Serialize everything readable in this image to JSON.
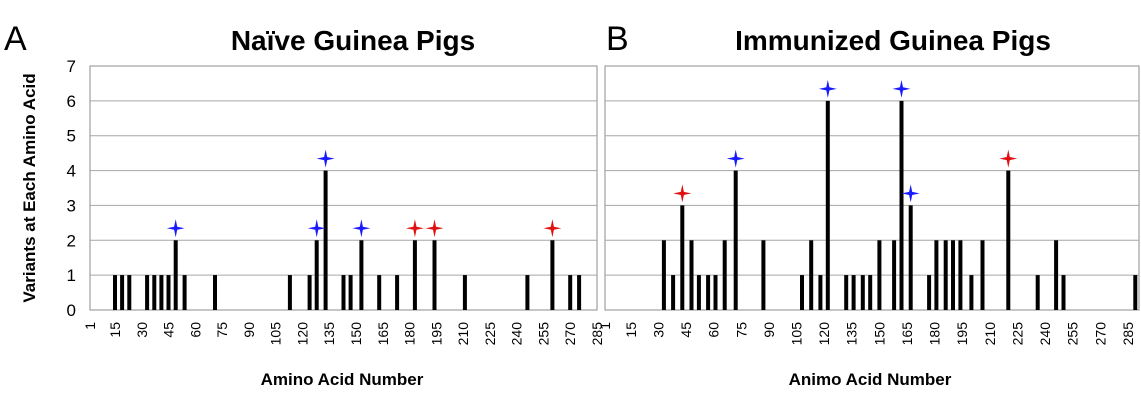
{
  "y_axis_label": "Variants at Each Amino Acid",
  "chart_data": [
    {
      "type": "bar",
      "panel_label": "A",
      "title": "Naïve Guinea Pigs",
      "xlabel": "Amino Acid Number",
      "ylabel": "Variants at Each Amino Acid",
      "ylim": [
        0,
        7
      ],
      "yticks": [
        0,
        1,
        2,
        3,
        4,
        5,
        6,
        7
      ],
      "xlim": [
        1,
        285
      ],
      "xticks": [
        1,
        15,
        30,
        45,
        60,
        75,
        90,
        105,
        120,
        135,
        150,
        165,
        180,
        195,
        210,
        225,
        240,
        255,
        270,
        285
      ],
      "grid": true,
      "points": [
        {
          "x": 15,
          "y": 1
        },
        {
          "x": 19,
          "y": 1
        },
        {
          "x": 23,
          "y": 1
        },
        {
          "x": 33,
          "y": 1
        },
        {
          "x": 37,
          "y": 1
        },
        {
          "x": 41,
          "y": 1
        },
        {
          "x": 45,
          "y": 1
        },
        {
          "x": 49,
          "y": 2
        },
        {
          "x": 54,
          "y": 1
        },
        {
          "x": 71,
          "y": 1
        },
        {
          "x": 113,
          "y": 1
        },
        {
          "x": 124,
          "y": 1
        },
        {
          "x": 128,
          "y": 2
        },
        {
          "x": 133,
          "y": 4
        },
        {
          "x": 143,
          "y": 1
        },
        {
          "x": 147,
          "y": 1
        },
        {
          "x": 153,
          "y": 2
        },
        {
          "x": 163,
          "y": 1
        },
        {
          "x": 173,
          "y": 1
        },
        {
          "x": 183,
          "y": 2
        },
        {
          "x": 194,
          "y": 2
        },
        {
          "x": 211,
          "y": 1
        },
        {
          "x": 246,
          "y": 1
        },
        {
          "x": 260,
          "y": 2
        },
        {
          "x": 270,
          "y": 1
        },
        {
          "x": 275,
          "y": 1
        }
      ],
      "markers": [
        {
          "x": 49,
          "y": 2,
          "color": "#1a1aff"
        },
        {
          "x": 128,
          "y": 2,
          "color": "#1a1aff"
        },
        {
          "x": 133,
          "y": 4,
          "color": "#1a1aff"
        },
        {
          "x": 153,
          "y": 2,
          "color": "#1a1aff"
        },
        {
          "x": 183,
          "y": 2,
          "color": "#e01010"
        },
        {
          "x": 194,
          "y": 2,
          "color": "#e01010"
        },
        {
          "x": 260,
          "y": 2,
          "color": "#e01010"
        }
      ]
    },
    {
      "type": "bar",
      "panel_label": "B",
      "title": "Immunized Guinea Pigs",
      "xlabel": "Animo Acid Number",
      "ylabel": "",
      "ylim": [
        0,
        7
      ],
      "yticks": [
        0,
        1,
        2,
        3,
        4,
        5,
        6,
        7
      ],
      "xlim": [
        1,
        291
      ],
      "xticks": [
        1,
        15,
        30,
        45,
        60,
        75,
        90,
        105,
        120,
        135,
        150,
        165,
        180,
        195,
        210,
        225,
        240,
        255,
        270,
        285
      ],
      "grid": true,
      "points": [
        {
          "x": 33,
          "y": 2
        },
        {
          "x": 38,
          "y": 1
        },
        {
          "x": 43,
          "y": 3
        },
        {
          "x": 48,
          "y": 2
        },
        {
          "x": 52,
          "y": 1
        },
        {
          "x": 57,
          "y": 1
        },
        {
          "x": 61,
          "y": 1
        },
        {
          "x": 66,
          "y": 2
        },
        {
          "x": 72,
          "y": 4
        },
        {
          "x": 87,
          "y": 2
        },
        {
          "x": 108,
          "y": 1
        },
        {
          "x": 113,
          "y": 2
        },
        {
          "x": 118,
          "y": 1
        },
        {
          "x": 122,
          "y": 6
        },
        {
          "x": 132,
          "y": 1
        },
        {
          "x": 136,
          "y": 1
        },
        {
          "x": 141,
          "y": 1
        },
        {
          "x": 145,
          "y": 1
        },
        {
          "x": 150,
          "y": 2
        },
        {
          "x": 158,
          "y": 2
        },
        {
          "x": 162,
          "y": 6
        },
        {
          "x": 167,
          "y": 3
        },
        {
          "x": 177,
          "y": 1
        },
        {
          "x": 181,
          "y": 2
        },
        {
          "x": 186,
          "y": 2
        },
        {
          "x": 190,
          "y": 2
        },
        {
          "x": 194,
          "y": 2
        },
        {
          "x": 200,
          "y": 1
        },
        {
          "x": 206,
          "y": 2
        },
        {
          "x": 220,
          "y": 4
        },
        {
          "x": 236,
          "y": 1
        },
        {
          "x": 246,
          "y": 2
        },
        {
          "x": 250,
          "y": 1
        },
        {
          "x": 289,
          "y": 1
        }
      ],
      "markers": [
        {
          "x": 43,
          "y": 3,
          "color": "#e01010"
        },
        {
          "x": 72,
          "y": 4,
          "color": "#1a1aff"
        },
        {
          "x": 122,
          "y": 6,
          "color": "#1a1aff"
        },
        {
          "x": 162,
          "y": 6,
          "color": "#1a1aff"
        },
        {
          "x": 167,
          "y": 3,
          "color": "#1a1aff"
        },
        {
          "x": 220,
          "y": 4,
          "color": "#e01010"
        }
      ]
    }
  ]
}
